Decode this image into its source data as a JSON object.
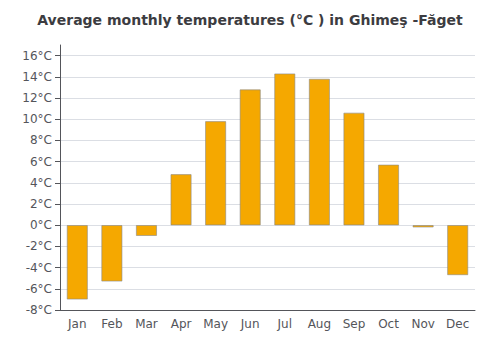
{
  "chart_data": {
    "type": "bar",
    "title": "Average monthly temperatures (°C ) in Ghimeş -Făget",
    "categories": [
      "Jan",
      "Feb",
      "Mar",
      "Apr",
      "May",
      "Jun",
      "Jul",
      "Aug",
      "Sep",
      "Oct",
      "Nov",
      "Dec"
    ],
    "values": [
      -7.0,
      -5.3,
      -1.0,
      4.8,
      9.8,
      12.8,
      14.3,
      13.8,
      10.6,
      5.7,
      -0.2,
      -4.7
    ],
    "color": "#F5A800",
    "ylim": [
      -8,
      17
    ],
    "yticks": [
      {
        "value": -8,
        "label": "-8°C"
      },
      {
        "value": -6,
        "label": "-6°C"
      },
      {
        "value": -4,
        "label": "-4°C"
      },
      {
        "value": -2,
        "label": "-2°C"
      },
      {
        "value": 0,
        "label": "0°C"
      },
      {
        "value": 2,
        "label": "2°C"
      },
      {
        "value": 4,
        "label": "4°C"
      },
      {
        "value": 6,
        "label": "6°C"
      },
      {
        "value": 8,
        "label": "8°C"
      },
      {
        "value": 10,
        "label": "10°C"
      },
      {
        "value": 12,
        "label": "12°C"
      },
      {
        "value": 14,
        "label": "14°C"
      },
      {
        "value": 16,
        "label": "16°C"
      }
    ],
    "grid": true
  }
}
